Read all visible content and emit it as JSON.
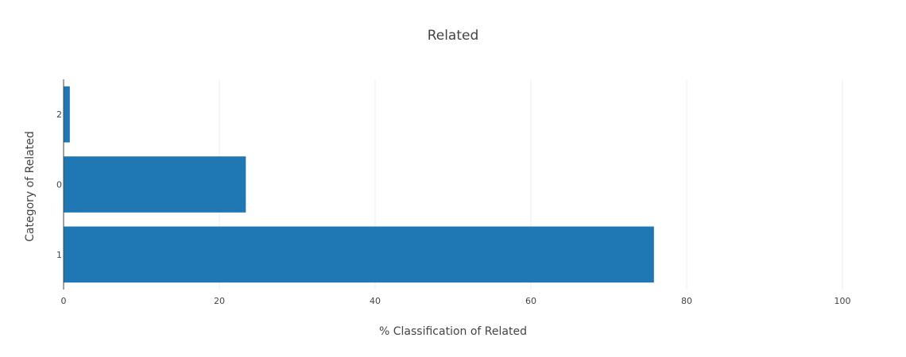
{
  "chart_data": {
    "type": "bar",
    "orientation": "horizontal",
    "title": "Related",
    "xlabel": "% Classification of Related",
    "ylabel": "Category of Related",
    "categories": [
      "1",
      "0",
      "2"
    ],
    "values": [
      75.8,
      23.4,
      0.8
    ],
    "xlim": [
      0,
      100
    ],
    "xticks": [
      0,
      20,
      40,
      60,
      80,
      100
    ],
    "grid": true,
    "bar_color": "#1f77b4"
  }
}
